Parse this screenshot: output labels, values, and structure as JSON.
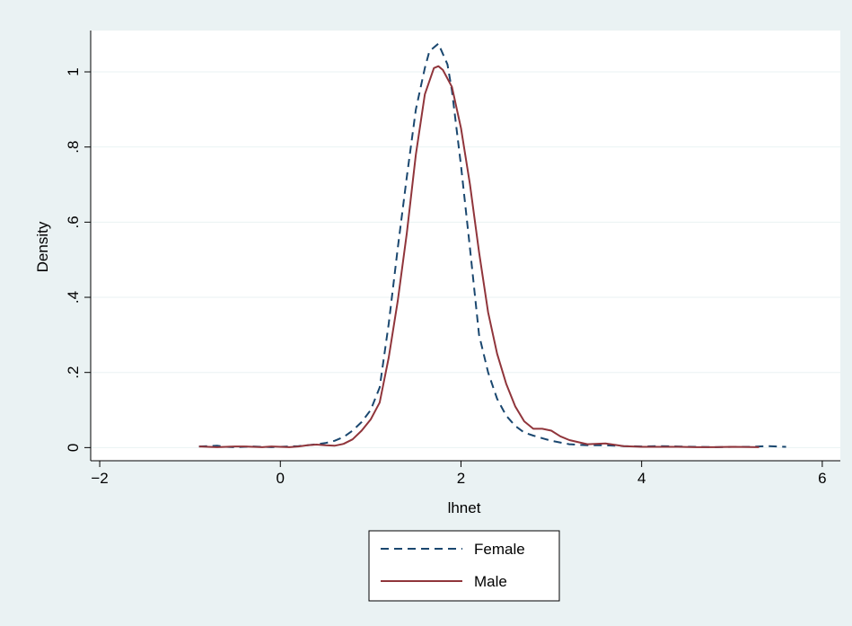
{
  "colors": {
    "outer_background": "#eaf2f3",
    "plot_background": "#ffffff",
    "gridline": "#eaf2f3",
    "axis": "#000000",
    "female": "#1a476f",
    "male": "#90353b"
  },
  "chart_data": {
    "type": "line",
    "title": "",
    "xlabel": "lhnet",
    "ylabel": "Density",
    "xlim": [
      -2.1,
      6.2
    ],
    "ylim": [
      -0.035,
      1.11
    ],
    "xticks": [
      -2,
      0,
      2,
      4,
      6
    ],
    "xtick_labels": [
      "−2",
      "0",
      "2",
      "4",
      "6"
    ],
    "yticks": [
      0,
      0.2,
      0.4,
      0.6,
      0.8,
      1
    ],
    "ytick_labels": [
      "0",
      ".2",
      ".4",
      ".6",
      ".8",
      "1"
    ],
    "grid": "horizontal",
    "legend_position": "bottom-center",
    "series": [
      {
        "name": "Female",
        "style": "dashed",
        "color": "#1a476f",
        "points": [
          [
            -0.9,
            0.003
          ],
          [
            -0.8,
            0.004
          ],
          [
            -0.7,
            0.005
          ],
          [
            -0.6,
            0.002
          ],
          [
            -0.5,
            0.001
          ],
          [
            -0.4,
            0.002
          ],
          [
            -0.3,
            0.003
          ],
          [
            -0.2,
            0.002
          ],
          [
            -0.1,
            0.001
          ],
          [
            0.0,
            0.002
          ],
          [
            0.1,
            0.003
          ],
          [
            0.2,
            0.004
          ],
          [
            0.3,
            0.006
          ],
          [
            0.4,
            0.009
          ],
          [
            0.5,
            0.012
          ],
          [
            0.6,
            0.018
          ],
          [
            0.7,
            0.028
          ],
          [
            0.8,
            0.045
          ],
          [
            0.9,
            0.068
          ],
          [
            1.0,
            0.1
          ],
          [
            1.1,
            0.16
          ],
          [
            1.2,
            0.33
          ],
          [
            1.3,
            0.53
          ],
          [
            1.4,
            0.72
          ],
          [
            1.5,
            0.9
          ],
          [
            1.6,
            1.01
          ],
          [
            1.65,
            1.055
          ],
          [
            1.75,
            1.075
          ],
          [
            1.85,
            1.02
          ],
          [
            1.9,
            0.95
          ],
          [
            2.0,
            0.75
          ],
          [
            2.1,
            0.53
          ],
          [
            2.2,
            0.3
          ],
          [
            2.3,
            0.2
          ],
          [
            2.4,
            0.13
          ],
          [
            2.5,
            0.085
          ],
          [
            2.6,
            0.058
          ],
          [
            2.7,
            0.04
          ],
          [
            2.8,
            0.032
          ],
          [
            2.9,
            0.025
          ],
          [
            3.0,
            0.018
          ],
          [
            3.2,
            0.009
          ],
          [
            3.4,
            0.006
          ],
          [
            3.6,
            0.006
          ],
          [
            3.8,
            0.004
          ],
          [
            4.0,
            0.003
          ],
          [
            4.2,
            0.004
          ],
          [
            4.4,
            0.003
          ],
          [
            4.6,
            0.002
          ],
          [
            4.8,
            0.001
          ],
          [
            5.0,
            0.002
          ],
          [
            5.2,
            0.002
          ],
          [
            5.4,
            0.004
          ],
          [
            5.6,
            0.002
          ]
        ]
      },
      {
        "name": "Male",
        "style": "solid",
        "color": "#90353b",
        "points": [
          [
            -0.9,
            0.003
          ],
          [
            -0.8,
            0.002
          ],
          [
            -0.7,
            0.001
          ],
          [
            -0.6,
            0.002
          ],
          [
            -0.5,
            0.003
          ],
          [
            -0.4,
            0.003
          ],
          [
            -0.3,
            0.002
          ],
          [
            -0.2,
            0.001
          ],
          [
            -0.1,
            0.003
          ],
          [
            0.0,
            0.002
          ],
          [
            0.1,
            0.001
          ],
          [
            0.2,
            0.003
          ],
          [
            0.3,
            0.006
          ],
          [
            0.4,
            0.008
          ],
          [
            0.5,
            0.006
          ],
          [
            0.6,
            0.005
          ],
          [
            0.7,
            0.01
          ],
          [
            0.8,
            0.022
          ],
          [
            0.9,
            0.045
          ],
          [
            1.0,
            0.075
          ],
          [
            1.1,
            0.12
          ],
          [
            1.2,
            0.24
          ],
          [
            1.3,
            0.39
          ],
          [
            1.4,
            0.57
          ],
          [
            1.5,
            0.78
          ],
          [
            1.6,
            0.94
          ],
          [
            1.7,
            1.01
          ],
          [
            1.75,
            1.015
          ],
          [
            1.8,
            1.005
          ],
          [
            1.9,
            0.96
          ],
          [
            2.0,
            0.85
          ],
          [
            2.1,
            0.7
          ],
          [
            2.2,
            0.52
          ],
          [
            2.3,
            0.36
          ],
          [
            2.4,
            0.25
          ],
          [
            2.5,
            0.17
          ],
          [
            2.6,
            0.11
          ],
          [
            2.7,
            0.07
          ],
          [
            2.8,
            0.05
          ],
          [
            2.9,
            0.05
          ],
          [
            3.0,
            0.045
          ],
          [
            3.1,
            0.03
          ],
          [
            3.2,
            0.02
          ],
          [
            3.4,
            0.009
          ],
          [
            3.6,
            0.011
          ],
          [
            3.8,
            0.004
          ],
          [
            4.0,
            0.002
          ],
          [
            4.2,
            0.002
          ],
          [
            4.4,
            0.002
          ],
          [
            4.6,
            0.001
          ],
          [
            4.8,
            0.001
          ],
          [
            5.0,
            0.002
          ],
          [
            5.3,
            0.001
          ]
        ]
      }
    ]
  }
}
